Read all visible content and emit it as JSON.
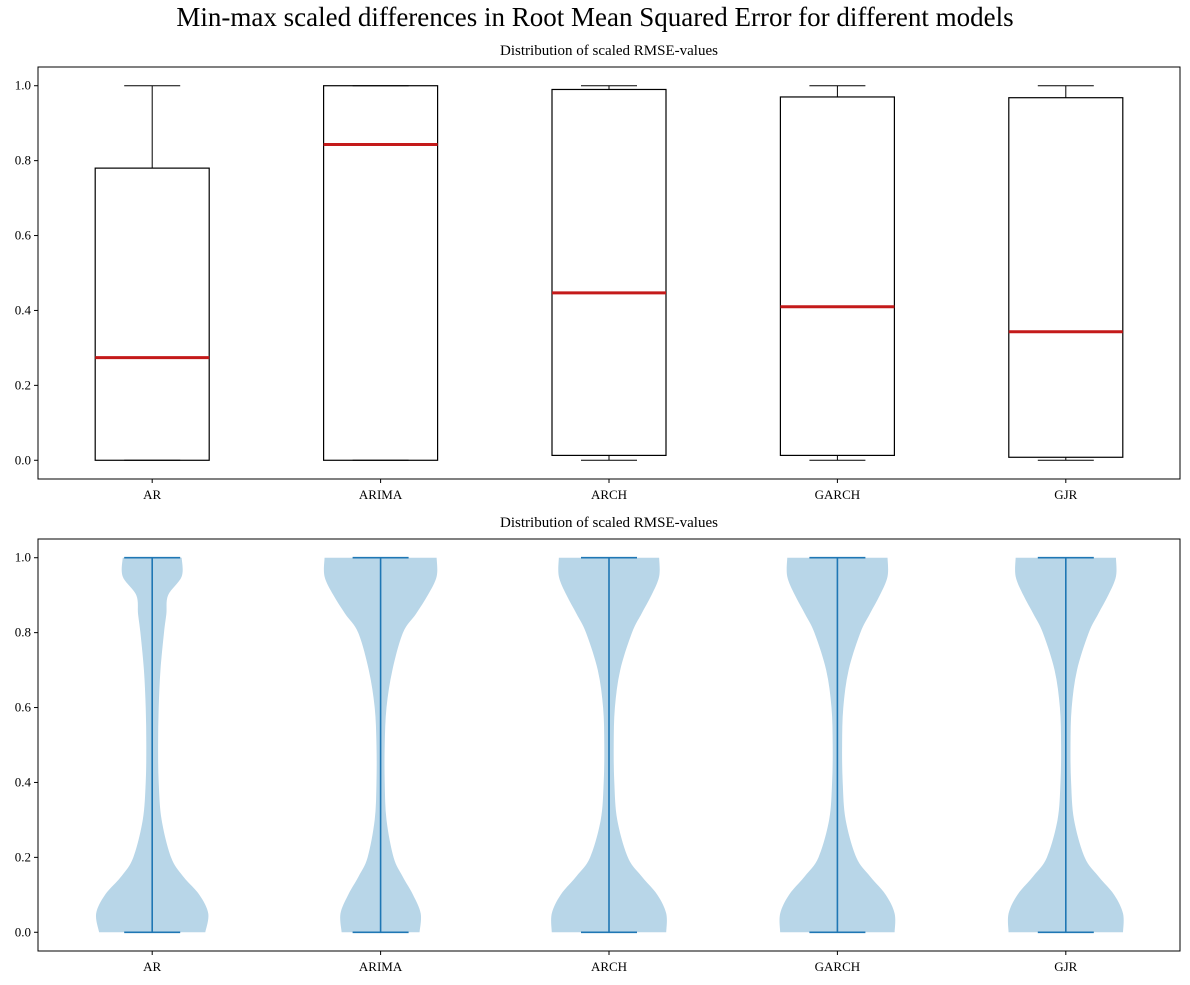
{
  "title": "Min-max scaled differences in Root Mean Squared Error for different models",
  "chart_data": [
    {
      "type": "box",
      "title": "Distribution of scaled RMSE-values",
      "categories": [
        "AR",
        "ARIMA",
        "ARCH",
        "GARCH",
        "GJR"
      ],
      "ylim": [
        -0.05,
        1.05
      ],
      "yticks": [
        0.0,
        0.2,
        0.4,
        0.6,
        0.8,
        1.0
      ],
      "grid": false,
      "median_color": "#c41a1a",
      "boxes": [
        {
          "label": "AR",
          "min": 0.0,
          "q1": 0.0,
          "median": 0.274,
          "q3": 0.78,
          "max": 1.0
        },
        {
          "label": "ARIMA",
          "min": 0.0,
          "q1": 0.0,
          "median": 0.843,
          "q3": 1.0,
          "max": 1.0
        },
        {
          "label": "ARCH",
          "min": 0.0,
          "q1": 0.013,
          "median": 0.447,
          "q3": 0.99,
          "max": 1.0
        },
        {
          "label": "GARCH",
          "min": 0.0,
          "q1": 0.013,
          "median": 0.41,
          "q3": 0.97,
          "max": 1.0
        },
        {
          "label": "GJR",
          "min": 0.0,
          "q1": 0.008,
          "median": 0.343,
          "q3": 0.968,
          "max": 1.0
        }
      ]
    },
    {
      "type": "violin",
      "title": "Distribution of scaled RMSE-values",
      "categories": [
        "AR",
        "ARIMA",
        "ARCH",
        "GARCH",
        "GJR"
      ],
      "ylim": [
        -0.05,
        1.05
      ],
      "yticks": [
        0.0,
        0.2,
        0.4,
        0.6,
        0.8,
        1.0
      ],
      "grid": false,
      "body_color": "#b8d6e8",
      "line_color": "#1f77b4",
      "density_y": [
        0.0,
        0.05,
        0.1,
        0.15,
        0.2,
        0.3,
        0.4,
        0.5,
        0.6,
        0.7,
        0.8,
        0.85,
        0.9,
        0.95,
        1.0
      ],
      "violins": [
        {
          "label": "AR",
          "min": 0.0,
          "max": 1.0,
          "density": [
            0.9,
            0.95,
            0.8,
            0.52,
            0.32,
            0.16,
            0.11,
            0.1,
            0.11,
            0.14,
            0.2,
            0.24,
            0.27,
            0.5,
            0.5
          ]
        },
        {
          "label": "ARIMA",
          "min": 0.0,
          "max": 1.0,
          "density": [
            0.66,
            0.68,
            0.55,
            0.37,
            0.22,
            0.1,
            0.07,
            0.07,
            0.1,
            0.2,
            0.38,
            0.6,
            0.8,
            0.95,
            0.95
          ]
        },
        {
          "label": "ARCH",
          "min": 0.0,
          "max": 1.0,
          "density": [
            0.97,
            0.97,
            0.82,
            0.55,
            0.32,
            0.14,
            0.09,
            0.08,
            0.1,
            0.19,
            0.39,
            0.55,
            0.72,
            0.85,
            0.85
          ]
        },
        {
          "label": "GARCH",
          "min": 0.0,
          "max": 1.0,
          "density": [
            0.97,
            0.97,
            0.82,
            0.55,
            0.32,
            0.14,
            0.09,
            0.08,
            0.1,
            0.19,
            0.39,
            0.55,
            0.72,
            0.85,
            0.85
          ]
        },
        {
          "label": "GJR",
          "min": 0.0,
          "max": 1.0,
          "density": [
            0.97,
            0.97,
            0.82,
            0.55,
            0.32,
            0.14,
            0.09,
            0.08,
            0.1,
            0.19,
            0.39,
            0.55,
            0.72,
            0.85,
            0.85
          ]
        }
      ]
    }
  ]
}
